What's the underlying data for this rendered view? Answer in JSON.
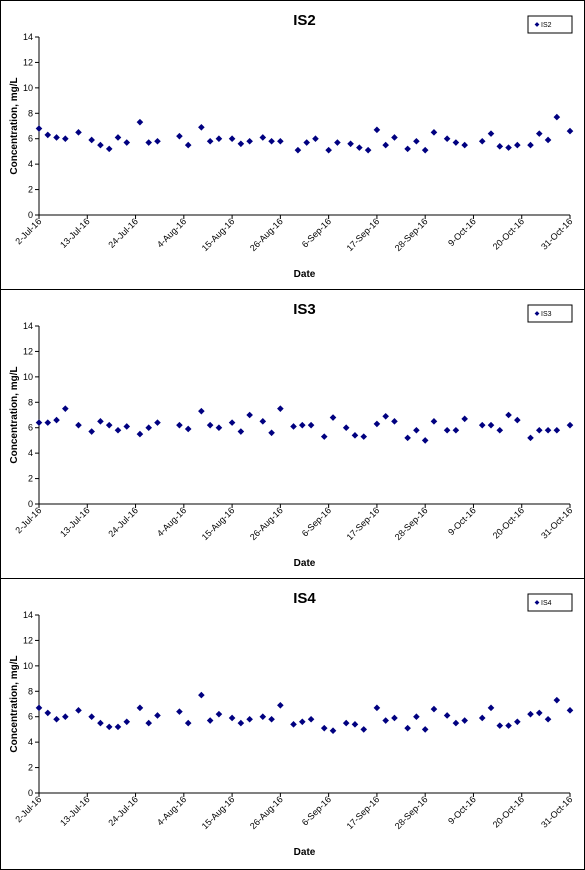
{
  "chart_data": [
    {
      "type": "scatter",
      "title": "IS2",
      "xlabel": "Date",
      "ylabel": "Concentration, mg/L",
      "ylim": [
        0,
        14
      ],
      "yticks": [
        "0",
        "2",
        "4",
        "6",
        "8",
        "10",
        "12",
        "14"
      ],
      "xlim": [
        "2016-07-02",
        "2016-10-31"
      ],
      "xticks": [
        "2-Jul-16",
        "13-Jul-16",
        "24-Jul-16",
        "4-Aug-16",
        "15-Aug-16",
        "26-Aug-16",
        "6-Sep-16",
        "17-Sep-16",
        "28-Sep-16",
        "9-Oct-16",
        "20-Oct-16",
        "31-Oct-16"
      ],
      "grid": false,
      "legend": "top-right",
      "series": [
        {
          "name": "IS2",
          "color": "#000080",
          "points": [
            [
              "2016-07-02",
              6.8
            ],
            [
              "2016-07-04",
              6.3
            ],
            [
              "2016-07-06",
              6.1
            ],
            [
              "2016-07-08",
              6.0
            ],
            [
              "2016-07-11",
              6.5
            ],
            [
              "2016-07-14",
              5.9
            ],
            [
              "2016-07-16",
              5.5
            ],
            [
              "2016-07-18",
              5.2
            ],
            [
              "2016-07-20",
              6.1
            ],
            [
              "2016-07-22",
              5.7
            ],
            [
              "2016-07-25",
              7.3
            ],
            [
              "2016-07-27",
              5.7
            ],
            [
              "2016-07-29",
              5.8
            ],
            [
              "2016-08-03",
              6.2
            ],
            [
              "2016-08-05",
              5.5
            ],
            [
              "2016-08-08",
              6.9
            ],
            [
              "2016-08-10",
              5.8
            ],
            [
              "2016-08-12",
              6.0
            ],
            [
              "2016-08-15",
              6.0
            ],
            [
              "2016-08-17",
              5.6
            ],
            [
              "2016-08-19",
              5.8
            ],
            [
              "2016-08-22",
              6.1
            ],
            [
              "2016-08-24",
              5.8
            ],
            [
              "2016-08-26",
              5.8
            ],
            [
              "2016-08-30",
              5.1
            ],
            [
              "2016-09-01",
              5.7
            ],
            [
              "2016-09-03",
              6.0
            ],
            [
              "2016-09-06",
              5.1
            ],
            [
              "2016-09-08",
              5.7
            ],
            [
              "2016-09-11",
              5.6
            ],
            [
              "2016-09-13",
              5.3
            ],
            [
              "2016-09-15",
              5.1
            ],
            [
              "2016-09-17",
              6.7
            ],
            [
              "2016-09-19",
              5.5
            ],
            [
              "2016-09-21",
              6.1
            ],
            [
              "2016-09-24",
              5.2
            ],
            [
              "2016-09-26",
              5.8
            ],
            [
              "2016-09-28",
              5.1
            ],
            [
              "2016-09-30",
              6.5
            ],
            [
              "2016-10-03",
              6.0
            ],
            [
              "2016-10-05",
              5.7
            ],
            [
              "2016-10-07",
              5.5
            ],
            [
              "2016-10-11",
              5.8
            ],
            [
              "2016-10-13",
              6.4
            ],
            [
              "2016-10-15",
              5.4
            ],
            [
              "2016-10-17",
              5.3
            ],
            [
              "2016-10-19",
              5.5
            ],
            [
              "2016-10-22",
              5.5
            ],
            [
              "2016-10-24",
              6.4
            ],
            [
              "2016-10-26",
              5.9
            ],
            [
              "2016-10-28",
              7.7
            ],
            [
              "2016-10-31",
              6.6
            ]
          ]
        }
      ]
    },
    {
      "type": "scatter",
      "title": "IS3",
      "xlabel": "Date",
      "ylabel": "Concentration, mg/L",
      "ylim": [
        0,
        14
      ],
      "yticks": [
        "0",
        "2",
        "4",
        "6",
        "8",
        "10",
        "12",
        "14"
      ],
      "xlim": [
        "2016-07-02",
        "2016-10-31"
      ],
      "xticks": [
        "2-Jul-16",
        "13-Jul-16",
        "24-Jul-16",
        "4-Aug-16",
        "15-Aug-16",
        "26-Aug-16",
        "6-Sep-16",
        "17-Sep-16",
        "28-Sep-16",
        "9-Oct-16",
        "20-Oct-16",
        "31-Oct-16"
      ],
      "grid": false,
      "legend": "top-right",
      "series": [
        {
          "name": "IS3",
          "color": "#000080",
          "points": [
            [
              "2016-07-02",
              6.4
            ],
            [
              "2016-07-04",
              6.4
            ],
            [
              "2016-07-06",
              6.6
            ],
            [
              "2016-07-08",
              7.5
            ],
            [
              "2016-07-11",
              6.2
            ],
            [
              "2016-07-14",
              5.7
            ],
            [
              "2016-07-16",
              6.5
            ],
            [
              "2016-07-18",
              6.2
            ],
            [
              "2016-07-20",
              5.8
            ],
            [
              "2016-07-22",
              6.1
            ],
            [
              "2016-07-25",
              5.5
            ],
            [
              "2016-07-27",
              6.0
            ],
            [
              "2016-07-29",
              6.4
            ],
            [
              "2016-08-03",
              6.2
            ],
            [
              "2016-08-05",
              5.9
            ],
            [
              "2016-08-08",
              7.3
            ],
            [
              "2016-08-10",
              6.2
            ],
            [
              "2016-08-12",
              6.0
            ],
            [
              "2016-08-15",
              6.4
            ],
            [
              "2016-08-17",
              5.7
            ],
            [
              "2016-08-19",
              7.0
            ],
            [
              "2016-08-22",
              6.5
            ],
            [
              "2016-08-24",
              5.6
            ],
            [
              "2016-08-26",
              7.5
            ],
            [
              "2016-08-29",
              6.1
            ],
            [
              "2016-08-31",
              6.2
            ],
            [
              "2016-09-02",
              6.2
            ],
            [
              "2016-09-05",
              5.3
            ],
            [
              "2016-09-07",
              6.8
            ],
            [
              "2016-09-10",
              6.0
            ],
            [
              "2016-09-12",
              5.4
            ],
            [
              "2016-09-14",
              5.3
            ],
            [
              "2016-09-17",
              6.3
            ],
            [
              "2016-09-19",
              6.9
            ],
            [
              "2016-09-21",
              6.5
            ],
            [
              "2016-09-24",
              5.2
            ],
            [
              "2016-09-26",
              5.8
            ],
            [
              "2016-09-28",
              5.0
            ],
            [
              "2016-09-30",
              6.5
            ],
            [
              "2016-10-03",
              5.8
            ],
            [
              "2016-10-05",
              5.8
            ],
            [
              "2016-10-07",
              6.7
            ],
            [
              "2016-10-11",
              6.2
            ],
            [
              "2016-10-13",
              6.2
            ],
            [
              "2016-10-15",
              5.8
            ],
            [
              "2016-10-17",
              7.0
            ],
            [
              "2016-10-19",
              6.6
            ],
            [
              "2016-10-22",
              5.2
            ],
            [
              "2016-10-24",
              5.8
            ],
            [
              "2016-10-26",
              5.8
            ],
            [
              "2016-10-28",
              5.8
            ],
            [
              "2016-10-31",
              6.2
            ]
          ]
        }
      ]
    },
    {
      "type": "scatter",
      "title": "IS4",
      "xlabel": "Date",
      "ylabel": "Concentration, mg/L",
      "ylim": [
        0,
        14
      ],
      "yticks": [
        "0",
        "2",
        "4",
        "6",
        "8",
        "10",
        "12",
        "14"
      ],
      "xlim": [
        "2016-07-02",
        "2016-10-31"
      ],
      "xticks": [
        "2-Jul-16",
        "13-Jul-16",
        "24-Jul-16",
        "4-Aug-16",
        "15-Aug-16",
        "26-Aug-16",
        "6-Sep-16",
        "17-Sep-16",
        "28-Sep-16",
        "9-Oct-16",
        "20-Oct-16",
        "31-Oct-16"
      ],
      "grid": false,
      "legend": "top-right",
      "series": [
        {
          "name": "IS4",
          "color": "#000080",
          "points": [
            [
              "2016-07-02",
              6.7
            ],
            [
              "2016-07-04",
              6.3
            ],
            [
              "2016-07-06",
              5.8
            ],
            [
              "2016-07-08",
              6.0
            ],
            [
              "2016-07-11",
              6.5
            ],
            [
              "2016-07-14",
              6.0
            ],
            [
              "2016-07-16",
              5.5
            ],
            [
              "2016-07-18",
              5.2
            ],
            [
              "2016-07-20",
              5.2
            ],
            [
              "2016-07-22",
              5.6
            ],
            [
              "2016-07-25",
              6.7
            ],
            [
              "2016-07-27",
              5.5
            ],
            [
              "2016-07-29",
              6.1
            ],
            [
              "2016-08-03",
              6.4
            ],
            [
              "2016-08-05",
              5.5
            ],
            [
              "2016-08-08",
              7.7
            ],
            [
              "2016-08-10",
              5.7
            ],
            [
              "2016-08-12",
              6.2
            ],
            [
              "2016-08-15",
              5.9
            ],
            [
              "2016-08-17",
              5.5
            ],
            [
              "2016-08-19",
              5.8
            ],
            [
              "2016-08-22",
              6.0
            ],
            [
              "2016-08-24",
              5.8
            ],
            [
              "2016-08-26",
              6.9
            ],
            [
              "2016-08-29",
              5.4
            ],
            [
              "2016-08-31",
              5.6
            ],
            [
              "2016-09-02",
              5.8
            ],
            [
              "2016-09-05",
              5.1
            ],
            [
              "2016-09-07",
              4.9
            ],
            [
              "2016-09-10",
              5.5
            ],
            [
              "2016-09-12",
              5.4
            ],
            [
              "2016-09-14",
              5.0
            ],
            [
              "2016-09-17",
              6.7
            ],
            [
              "2016-09-19",
              5.7
            ],
            [
              "2016-09-21",
              5.9
            ],
            [
              "2016-09-24",
              5.1
            ],
            [
              "2016-09-26",
              6.0
            ],
            [
              "2016-09-28",
              5.0
            ],
            [
              "2016-09-30",
              6.6
            ],
            [
              "2016-10-03",
              6.1
            ],
            [
              "2016-10-05",
              5.5
            ],
            [
              "2016-10-07",
              5.7
            ],
            [
              "2016-10-11",
              5.9
            ],
            [
              "2016-10-13",
              6.7
            ],
            [
              "2016-10-15",
              5.3
            ],
            [
              "2016-10-17",
              5.3
            ],
            [
              "2016-10-19",
              5.6
            ],
            [
              "2016-10-22",
              6.2
            ],
            [
              "2016-10-24",
              6.3
            ],
            [
              "2016-10-26",
              5.8
            ],
            [
              "2016-10-28",
              7.3
            ],
            [
              "2016-10-31",
              6.5
            ]
          ]
        }
      ]
    }
  ]
}
